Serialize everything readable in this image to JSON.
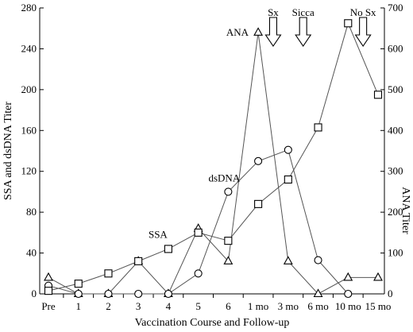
{
  "chart_data": {
    "type": "line",
    "xlabel": "Vaccination Course and Follow-up",
    "ylabel": "SSA and dsDNA Titer",
    "y2label": "ANA Titer",
    "categories": [
      "Pre",
      "1",
      "2",
      "3",
      "4",
      "5",
      "6",
      "1 mo",
      "3 mo",
      "6 mo",
      "10 mo",
      "15 mo"
    ],
    "ylim": [
      0,
      280
    ],
    "yticks": [
      0,
      40,
      80,
      120,
      160,
      200,
      240,
      280
    ],
    "y2lim": [
      0,
      700
    ],
    "y2ticks": [
      0,
      100,
      200,
      300,
      400,
      500,
      600,
      700
    ],
    "grid": false,
    "series": [
      {
        "name": "ANA",
        "axis": "right",
        "marker": "triangle",
        "x": [
          "Pre",
          "1",
          "2",
          "3",
          "4",
          "5",
          "6",
          "1 mo",
          "3 mo",
          "6 mo",
          "10 mo",
          "15 mo"
        ],
        "values": [
          40,
          0,
          0,
          80,
          0,
          160,
          80,
          640,
          80,
          0,
          40,
          40
        ]
      },
      {
        "name": "dsDNA",
        "axis": "left",
        "marker": "circle",
        "x": [
          "Pre",
          "1",
          "2",
          "3",
          "4",
          "5",
          "6",
          "1 mo",
          "3 mo",
          "6 mo",
          "10 mo"
        ],
        "values": [
          8,
          0,
          0,
          0,
          0,
          20,
          100,
          130,
          141,
          33,
          0
        ]
      },
      {
        "name": "SSA",
        "axis": "left",
        "marker": "square",
        "x": [
          "Pre",
          "1",
          "2",
          "3",
          "4",
          "5",
          "6",
          "1 mo",
          "3 mo",
          "6 mo",
          "10 mo",
          "15 mo"
        ],
        "values": [
          3,
          10,
          20,
          32,
          44,
          60,
          52,
          88,
          112,
          163,
          265,
          195
        ]
      }
    ],
    "annotations": [
      {
        "text": "Sx",
        "x_between": [
          "1 mo",
          "3 mo"
        ]
      },
      {
        "text": "Sicca",
        "x_between": [
          "3 mo",
          "6 mo"
        ]
      },
      {
        "text": "No Sx",
        "x_between": [
          "10 mo",
          "15 mo"
        ]
      }
    ]
  }
}
